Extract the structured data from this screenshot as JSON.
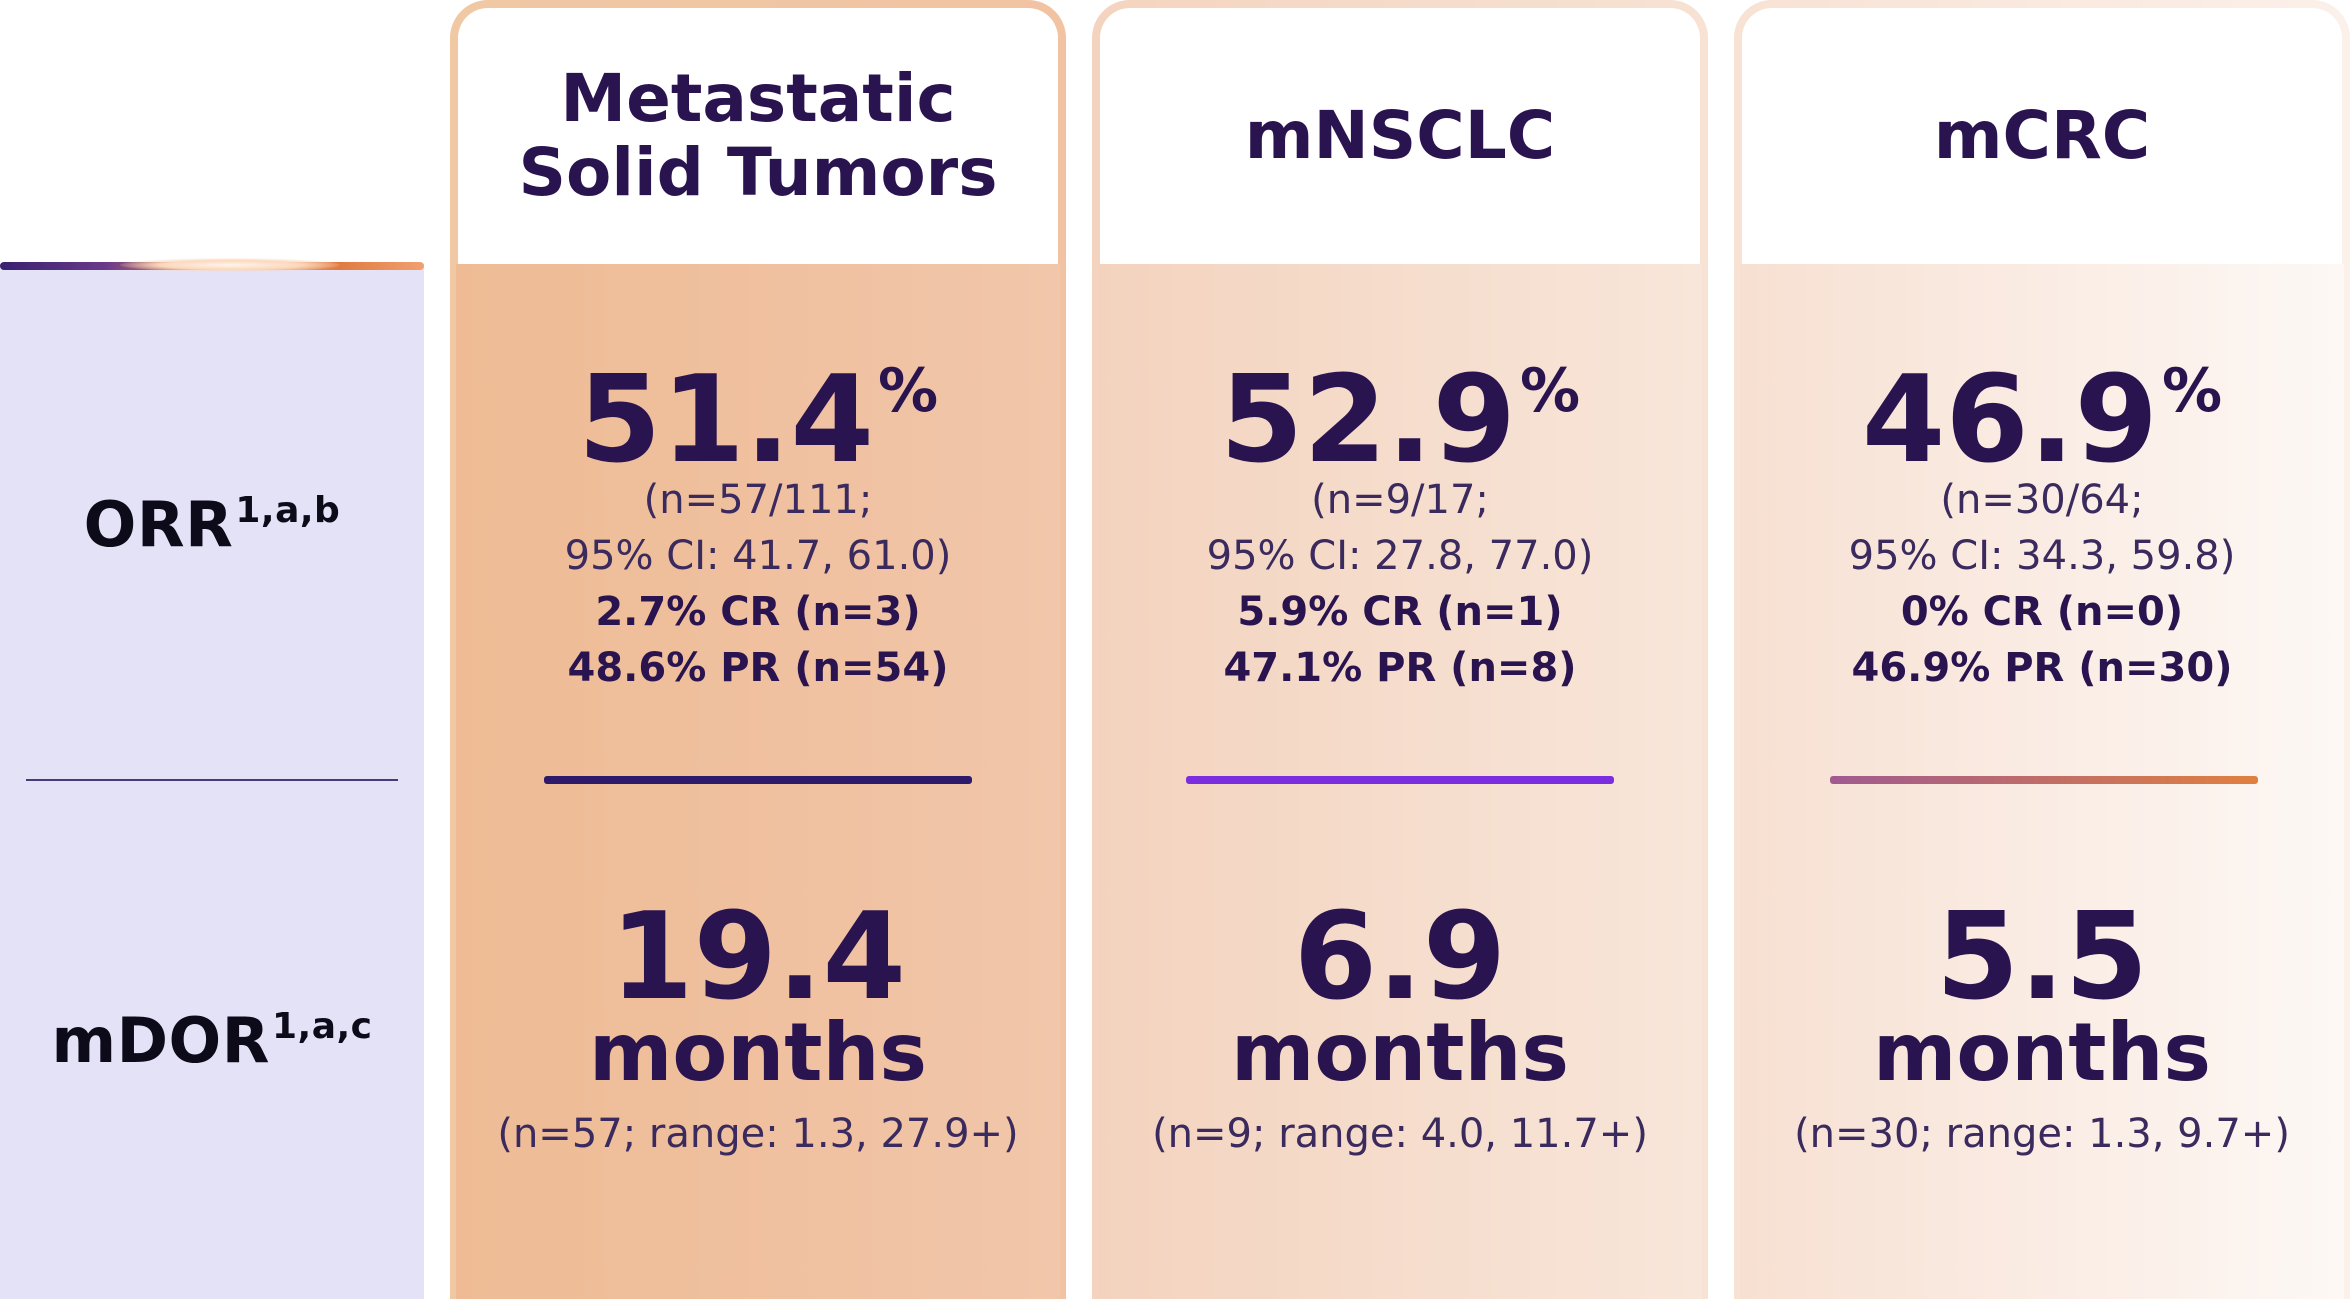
{
  "rows": {
    "orr": {
      "label": "ORR",
      "sup": "1,a,b"
    },
    "mdor": {
      "label": "mDOR",
      "sup": "1,a,c"
    }
  },
  "columns": [
    {
      "title": "Metastatic\nSolid Tumors",
      "orr_value": "51.4",
      "orr_unit": "%",
      "orr_n": "(n=57/111;",
      "orr_ci": "95% CI: 41.7, 61.0)",
      "cr": "2.7% CR (n=3)",
      "pr": "48.6% PR (n=54)",
      "mdor_value": "19.4",
      "mdor_unit": "months",
      "mdor_range": "(n=57; range: 1.3, 27.9+)"
    },
    {
      "title": "mNSCLC",
      "orr_value": "52.9",
      "orr_unit": "%",
      "orr_n": "(n=9/17;",
      "orr_ci": "95% CI: 27.8, 77.0)",
      "cr": "5.9% CR (n=1)",
      "pr": "47.1% PR (n=8)",
      "mdor_value": "6.9",
      "mdor_unit": "months",
      "mdor_range": "(n=9; range: 4.0, 11.7+)"
    },
    {
      "title": "mCRC",
      "orr_value": "46.9",
      "orr_unit": "%",
      "orr_n": "(n=30/64;",
      "orr_ci": "95% CI: 34.3, 59.8)",
      "cr": "0% CR (n=0)",
      "pr": "46.9% PR (n=30)",
      "mdor_value": "5.5",
      "mdor_unit": "months",
      "mdor_range": "(n=30; range: 1.3, 9.7+)"
    }
  ],
  "colors": {
    "text_primary": "#2a1450",
    "label_bg": "#e4e2f6",
    "col1_bar": "#2e1a6a",
    "col2_bar": "#7a2ee0",
    "col3_bar_start": "#a05a90",
    "col3_bar_end": "#e08040"
  }
}
